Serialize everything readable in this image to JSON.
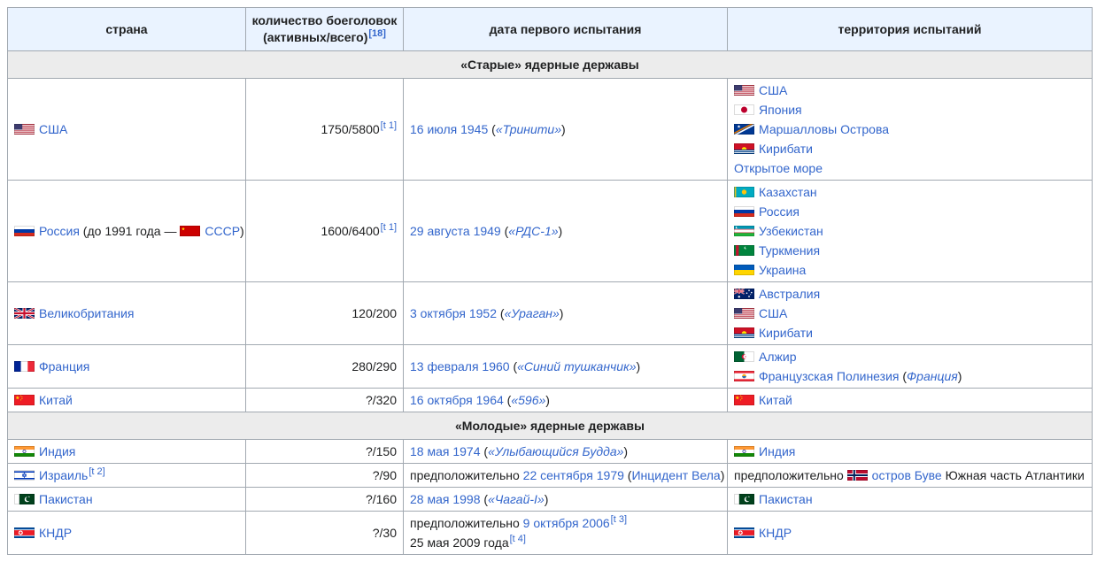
{
  "colors": {
    "link": "#3366cc",
    "text": "#202122",
    "border": "#a2a9b1",
    "header_bg": "#eaf3ff",
    "section_bg": "#ececec"
  },
  "table": {
    "headers": {
      "country": "страна",
      "warheads_line1": "количество боеголовок",
      "warheads_line2": "(активных/всего)",
      "warheads_ref": "[18]",
      "first_test": "дата первого испытания",
      "territory": "территория испытаний"
    },
    "sections": [
      {
        "title": "«Старые» ядерные державы",
        "rows": [
          {
            "id": "usa",
            "country": [
              {
                "type": "flag",
                "code": "us",
                "name": "usa"
              },
              {
                "type": "link",
                "text": "США"
              }
            ],
            "warheads": [
              {
                "type": "text",
                "text": "1750/5800"
              },
              {
                "type": "sup",
                "text": "[t 1]"
              }
            ],
            "date": [
              [
                {
                  "type": "link",
                  "text": "16 июля 1945"
                },
                {
                  "type": "text",
                  "text": " ("
                },
                {
                  "type": "link-italic",
                  "text": "«Тринити»"
                },
                {
                  "type": "text",
                  "text": ")"
                }
              ]
            ],
            "territory": [
              [
                {
                  "type": "flag",
                  "code": "us",
                  "name": "usa"
                },
                {
                  "type": "link",
                  "text": "США"
                }
              ],
              [
                {
                  "type": "flag",
                  "code": "jp",
                  "name": "japan"
                },
                {
                  "type": "link",
                  "text": "Япония"
                }
              ],
              [
                {
                  "type": "flag",
                  "code": "mh",
                  "name": "marshall-islands"
                },
                {
                  "type": "link",
                  "text": "Маршалловы Острова"
                }
              ],
              [
                {
                  "type": "flag",
                  "code": "ki",
                  "name": "kiribati"
                },
                {
                  "type": "link",
                  "text": "Кирибати"
                }
              ],
              [
                {
                  "type": "link",
                  "text": "Открытое море"
                }
              ]
            ]
          },
          {
            "id": "russia",
            "country": [
              {
                "type": "flag",
                "code": "ru",
                "name": "russia"
              },
              {
                "type": "link",
                "text": "Россия"
              },
              {
                "type": "text",
                "text": " (до 1991 года — "
              },
              {
                "type": "flag",
                "code": "su",
                "name": "ussr"
              },
              {
                "type": "link",
                "text": "СССР"
              },
              {
                "type": "text",
                "text": ")"
              }
            ],
            "warheads": [
              {
                "type": "text",
                "text": "1600/6400"
              },
              {
                "type": "sup",
                "text": "[t 1]"
              }
            ],
            "date": [
              [
                {
                  "type": "link",
                  "text": "29 августа 1949"
                },
                {
                  "type": "text",
                  "text": " ("
                },
                {
                  "type": "link-italic",
                  "text": "«РДС-1»"
                },
                {
                  "type": "text",
                  "text": ")"
                }
              ]
            ],
            "territory": [
              [
                {
                  "type": "flag",
                  "code": "kz",
                  "name": "kazakhstan"
                },
                {
                  "type": "link",
                  "text": "Казахстан"
                }
              ],
              [
                {
                  "type": "flag",
                  "code": "ru",
                  "name": "russia"
                },
                {
                  "type": "link",
                  "text": "Россия"
                }
              ],
              [
                {
                  "type": "flag",
                  "code": "uz",
                  "name": "uzbekistan"
                },
                {
                  "type": "link",
                  "text": "Узбекистан"
                }
              ],
              [
                {
                  "type": "flag",
                  "code": "tm",
                  "name": "turkmenistan"
                },
                {
                  "type": "link",
                  "text": "Туркмения"
                }
              ],
              [
                {
                  "type": "flag",
                  "code": "ua",
                  "name": "ukraine"
                },
                {
                  "type": "link",
                  "text": "Украина"
                }
              ]
            ]
          },
          {
            "id": "uk",
            "country": [
              {
                "type": "flag",
                "code": "gb",
                "name": "united-kingdom"
              },
              {
                "type": "link",
                "text": "Великобритания"
              }
            ],
            "warheads": [
              {
                "type": "text",
                "text": "120/200"
              }
            ],
            "date": [
              [
                {
                  "type": "link",
                  "text": "3 октября 1952"
                },
                {
                  "type": "text",
                  "text": " ("
                },
                {
                  "type": "link-italic",
                  "text": "«Ураган»"
                },
                {
                  "type": "text",
                  "text": ")"
                }
              ]
            ],
            "territory": [
              [
                {
                  "type": "flag",
                  "code": "au",
                  "name": "australia"
                },
                {
                  "type": "link",
                  "text": "Австралия"
                }
              ],
              [
                {
                  "type": "flag",
                  "code": "us",
                  "name": "usa"
                },
                {
                  "type": "link",
                  "text": "США"
                }
              ],
              [
                {
                  "type": "flag",
                  "code": "ki",
                  "name": "kiribati"
                },
                {
                  "type": "link",
                  "text": "Кирибати"
                }
              ]
            ]
          },
          {
            "id": "france",
            "country": [
              {
                "type": "flag",
                "code": "fr",
                "name": "france"
              },
              {
                "type": "link",
                "text": "Франция"
              }
            ],
            "warheads": [
              {
                "type": "text",
                "text": "280/290"
              }
            ],
            "date": [
              [
                {
                  "type": "link",
                  "text": "13 февраля 1960"
                },
                {
                  "type": "text",
                  "text": " ("
                },
                {
                  "type": "link-italic",
                  "text": "«Синий тушканчик»"
                },
                {
                  "type": "text",
                  "text": ")"
                }
              ]
            ],
            "territory": [
              [
                {
                  "type": "flag",
                  "code": "dz",
                  "name": "algeria"
                },
                {
                  "type": "link",
                  "text": "Алжир"
                }
              ],
              [
                {
                  "type": "flag",
                  "code": "pf",
                  "name": "french-polynesia"
                },
                {
                  "type": "link",
                  "text": "Французская Полинезия"
                },
                {
                  "type": "text",
                  "text": " ("
                },
                {
                  "type": "link-italic",
                  "text": "Франция"
                },
                {
                  "type": "text",
                  "text": ")"
                }
              ]
            ]
          },
          {
            "id": "china",
            "country": [
              {
                "type": "flag",
                "code": "cn",
                "name": "china"
              },
              {
                "type": "link",
                "text": "Китай"
              }
            ],
            "warheads": [
              {
                "type": "text",
                "text": "?/320"
              }
            ],
            "date": [
              [
                {
                  "type": "link",
                  "text": "16 октября 1964"
                },
                {
                  "type": "text",
                  "text": " ("
                },
                {
                  "type": "link-italic",
                  "text": "«596»"
                },
                {
                  "type": "text",
                  "text": ")"
                }
              ]
            ],
            "territory": [
              [
                {
                  "type": "flag",
                  "code": "cn",
                  "name": "china"
                },
                {
                  "type": "link",
                  "text": "Китай"
                }
              ]
            ]
          }
        ]
      },
      {
        "title": "«Молодые» ядерные державы",
        "rows": [
          {
            "id": "india",
            "country": [
              {
                "type": "flag",
                "code": "in",
                "name": "india"
              },
              {
                "type": "link",
                "text": "Индия"
              }
            ],
            "warheads": [
              {
                "type": "text",
                "text": "?/150"
              }
            ],
            "date": [
              [
                {
                  "type": "link",
                  "text": "18 мая 1974"
                },
                {
                  "type": "text",
                  "text": " ("
                },
                {
                  "type": "link-italic",
                  "text": "«Улыбающийся Будда»"
                },
                {
                  "type": "text",
                  "text": ")"
                }
              ]
            ],
            "territory": [
              [
                {
                  "type": "flag",
                  "code": "in",
                  "name": "india"
                },
                {
                  "type": "link",
                  "text": "Индия"
                }
              ]
            ]
          },
          {
            "id": "israel",
            "country": [
              {
                "type": "flag",
                "code": "il",
                "name": "israel"
              },
              {
                "type": "link",
                "text": "Израиль"
              },
              {
                "type": "sup",
                "text": "[t 2]"
              }
            ],
            "warheads": [
              {
                "type": "text",
                "text": "?/90"
              }
            ],
            "date": [
              [
                {
                  "type": "text",
                  "text": "предположительно "
                },
                {
                  "type": "link",
                  "text": "22 сентября 1979"
                },
                {
                  "type": "text",
                  "text": " ("
                },
                {
                  "type": "link",
                  "text": "Инцидент Вела"
                },
                {
                  "type": "text",
                  "text": ")"
                }
              ]
            ],
            "territory": [
              [
                {
                  "type": "text",
                  "text": "предположительно "
                },
                {
                  "type": "flag",
                  "code": "no",
                  "name": "norway"
                },
                {
                  "type": "link",
                  "text": "остров Буве"
                },
                {
                  "type": "text",
                  "text": " Южная часть Атлантики"
                }
              ]
            ]
          },
          {
            "id": "pakistan",
            "country": [
              {
                "type": "flag",
                "code": "pk",
                "name": "pakistan"
              },
              {
                "type": "link",
                "text": "Пакистан"
              }
            ],
            "warheads": [
              {
                "type": "text",
                "text": "?/160"
              }
            ],
            "date": [
              [
                {
                  "type": "link",
                  "text": "28 мая 1998"
                },
                {
                  "type": "text",
                  "text": " ("
                },
                {
                  "type": "link-italic",
                  "text": "«Чагай-I»"
                },
                {
                  "type": "text",
                  "text": ")"
                }
              ]
            ],
            "territory": [
              [
                {
                  "type": "flag",
                  "code": "pk",
                  "name": "pakistan"
                },
                {
                  "type": "link",
                  "text": "Пакистан"
                }
              ]
            ]
          },
          {
            "id": "dprk",
            "country": [
              {
                "type": "flag",
                "code": "kp",
                "name": "north-korea"
              },
              {
                "type": "link",
                "text": "КНДР"
              }
            ],
            "warheads": [
              {
                "type": "text",
                "text": "?/30"
              }
            ],
            "date": [
              [
                {
                  "type": "text",
                  "text": "предположительно "
                },
                {
                  "type": "link",
                  "text": "9 октября 2006"
                },
                {
                  "type": "sup",
                  "text": "[t 3]"
                }
              ],
              [
                {
                  "type": "text",
                  "text": "25 мая 2009 года"
                },
                {
                  "type": "sup",
                  "text": "[t 4]"
                }
              ]
            ],
            "territory": [
              [
                {
                  "type": "flag",
                  "code": "kp",
                  "name": "north-korea"
                },
                {
                  "type": "link",
                  "text": "КНДР"
                }
              ]
            ]
          }
        ]
      }
    ]
  }
}
